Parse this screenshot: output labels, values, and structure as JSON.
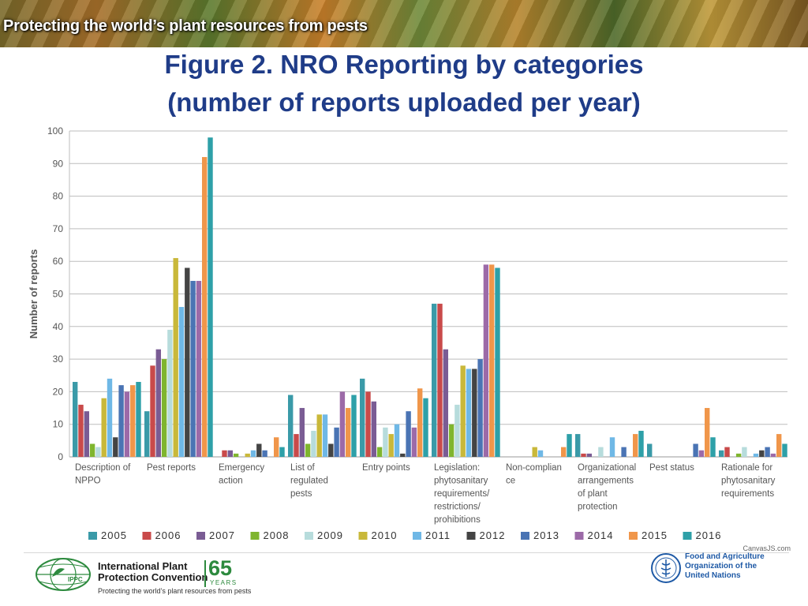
{
  "banner": {
    "title": "Protecting the world’s plant resources from pests"
  },
  "figure": {
    "title_line1": "Figure 2. NRO Reporting by categories",
    "title_line2": "(number of reports uploaded per year)"
  },
  "chart_data": {
    "type": "bar",
    "ylabel": "Number of reports",
    "ylim": [
      0,
      100
    ],
    "yticks": [
      0,
      10,
      20,
      30,
      40,
      50,
      60,
      70,
      80,
      90,
      100
    ],
    "grid": true,
    "legend_position": "bottom",
    "categories": [
      [
        "Description of",
        "NPPO"
      ],
      [
        "Pest reports"
      ],
      [
        "Emergency",
        "action"
      ],
      [
        "List of",
        "regulated",
        "pests"
      ],
      [
        "Entry points"
      ],
      [
        "Legislation:",
        "phytosanitary",
        "requirements/",
        "restrictions/",
        "prohibitions"
      ],
      [
        "Non-complian",
        "ce"
      ],
      [
        "Organizational",
        "arrangements",
        "of plant",
        "protection"
      ],
      [
        "Pest status"
      ],
      [
        "Rationale for",
        "phytosanitary",
        "requirements"
      ]
    ],
    "series": [
      {
        "name": "2005",
        "color": "#3a9aa8",
        "values": [
          23,
          14,
          0,
          19,
          24,
          47,
          0,
          7,
          4,
          2
        ]
      },
      {
        "name": "2006",
        "color": "#c94a4a",
        "values": [
          16,
          28,
          2,
          7,
          20,
          47,
          0,
          1,
          0,
          3
        ]
      },
      {
        "name": "2007",
        "color": "#7a5c94",
        "values": [
          14,
          33,
          2,
          15,
          17,
          33,
          0,
          1,
          0,
          0
        ]
      },
      {
        "name": "2008",
        "color": "#7fb52e",
        "values": [
          4,
          30,
          1,
          4,
          3,
          10,
          0,
          0,
          0,
          1
        ]
      },
      {
        "name": "2009",
        "color": "#b7dcdc",
        "values": [
          3,
          39,
          0,
          8,
          9,
          16,
          0,
          3,
          0,
          3
        ]
      },
      {
        "name": "2010",
        "color": "#c9b83a",
        "values": [
          18,
          61,
          1,
          13,
          7,
          28,
          3,
          0,
          0,
          0
        ]
      },
      {
        "name": "2011",
        "color": "#6fb8e6",
        "values": [
          24,
          46,
          2,
          13,
          10,
          27,
          2,
          6,
          0,
          1
        ]
      },
      {
        "name": "2012",
        "color": "#444444",
        "values": [
          6,
          58,
          4,
          4,
          1,
          27,
          0,
          0,
          0,
          2
        ]
      },
      {
        "name": "2013",
        "color": "#4a74b4",
        "values": [
          22,
          54,
          2,
          9,
          14,
          30,
          0,
          3,
          4,
          3
        ]
      },
      {
        "name": "2014",
        "color": "#9c6aa8",
        "values": [
          20,
          54,
          0,
          20,
          9,
          59,
          0,
          0,
          2,
          1
        ]
      },
      {
        "name": "2015",
        "color": "#f0964a",
        "values": [
          22,
          92,
          6,
          15,
          21,
          59,
          3,
          7,
          15,
          7
        ]
      },
      {
        "name": "2016",
        "color": "#2ea0a8",
        "values": [
          23,
          98,
          3,
          19,
          18,
          58,
          7,
          8,
          6,
          4
        ]
      }
    ]
  },
  "credit": "CanvasJS.com",
  "footer": {
    "ippc_line1": "International Plant",
    "ippc_line2": "Protection Convention",
    "ippc_logo_text": "IPPC",
    "years_number": "65",
    "years_label": "YEARS",
    "tagline": "Protecting the world’s plant resources from pests",
    "fao_line1": "Food and Agriculture",
    "fao_line2": "Organization of the",
    "fao_line3": "United Nations"
  }
}
